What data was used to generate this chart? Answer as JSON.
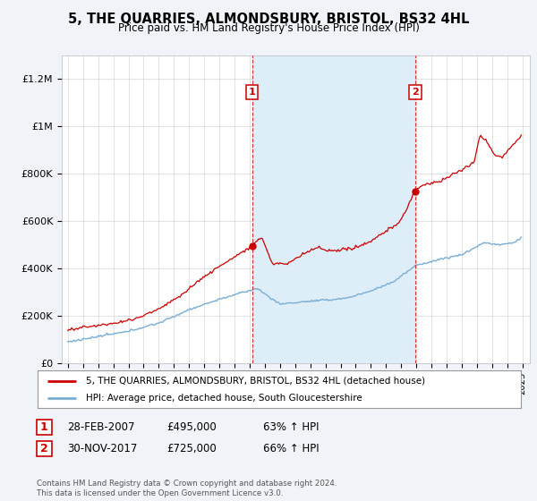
{
  "title": "5, THE QUARRIES, ALMONDSBURY, BRISTOL, BS32 4HL",
  "subtitle": "Price paid vs. HM Land Registry's House Price Index (HPI)",
  "ylabel_ticks": [
    "£0",
    "£200K",
    "£400K",
    "£600K",
    "£800K",
    "£1M",
    "£1.2M"
  ],
  "ytick_values": [
    0,
    200000,
    400000,
    600000,
    800000,
    1000000,
    1200000
  ],
  "ylim": [
    0,
    1300000
  ],
  "xlim_start": 1994.6,
  "xlim_end": 2025.5,
  "legend_line1": "5, THE QUARRIES, ALMONDSBURY, BRISTOL, BS32 4HL (detached house)",
  "legend_line2": "HPI: Average price, detached house, South Gloucestershire",
  "sale1_date": "28-FEB-2007",
  "sale1_price": "£495,000",
  "sale1_hpi": "63% ↑ HPI",
  "sale1_x": 2007.17,
  "sale1_y": 495000,
  "sale2_date": "30-NOV-2017",
  "sale2_price": "£725,000",
  "sale2_hpi": "66% ↑ HPI",
  "sale2_x": 2017.92,
  "sale2_y": 725000,
  "footer": "Contains HM Land Registry data © Crown copyright and database right 2024.\nThis data is licensed under the Open Government Licence v3.0.",
  "line_color_property": "#cc0000",
  "line_color_hpi": "#7aadd4",
  "fill_color": "#ddeef8",
  "background_color": "#f0f4f8",
  "plot_bg_color": "#ffffff",
  "grid_color": "#cccccc"
}
